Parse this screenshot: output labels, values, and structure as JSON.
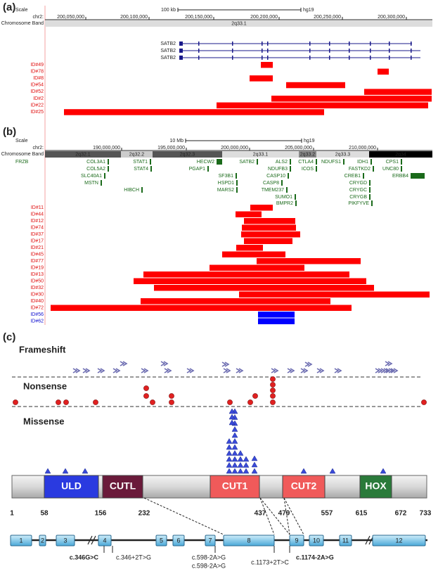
{
  "panel_a": {
    "label": "(a)",
    "scale_label": "Scale",
    "scale_value": "100 kb",
    "assembly": "hg19",
    "chr_label": "chr2:",
    "chr_ticks": [
      "200,050,000",
      "200,100,000",
      "200,150,000",
      "200,200,000",
      "200,250,000",
      "200,300,000"
    ],
    "band_label": "Chromosome Band",
    "band": "2q33.1",
    "genes": [
      "SATB2",
      "SATB2",
      "SATB2"
    ],
    "ids": [
      "ID#49",
      "ID#78",
      "ID#8",
      "ID#54",
      "ID#52",
      "ID#2",
      "ID#22",
      "ID#25"
    ]
  },
  "panel_b": {
    "label": "(b)",
    "scale_label": "Scale",
    "scale_value": "10 Mb",
    "assembly": "hg19",
    "chr_label": "chr2:",
    "chr_ticks": [
      "190,000,000",
      "195,000,000",
      "200,000,000",
      "205,000,000",
      "210,000,000"
    ],
    "band_label": "Chromosome Band",
    "bands": [
      "2q32.1",
      "2q32.2",
      "2q32.3",
      "2q33.1",
      "2q33.2",
      "2q33.3",
      "2q34"
    ],
    "genes": [
      "FRZB",
      "COL3A1",
      "STAT1",
      "HECW2",
      "SATB2",
      "ALS2",
      "CTLA4",
      "NDUFS1",
      "IDH1",
      "CPS1",
      "COL5A2",
      "STAT4",
      "PGAP1",
      "NDUFB3",
      "ICOS",
      "FASTKD2",
      "UNC80",
      "SLC40A1",
      "SF3B1",
      "CASP10",
      "CREB1",
      "ERBB4",
      "MSTN",
      "HSPD1",
      "CASP8",
      "CRYGD",
      "HIBCH",
      "MARS2",
      "TMEM237",
      "CRYGC",
      "SUMO1",
      "CRYGB",
      "BMPR2",
      "PIKFYVE"
    ],
    "ids": [
      "ID#11",
      "ID#44",
      "ID#12",
      "ID#74",
      "ID#37",
      "ID#17",
      "ID#21",
      "ID#45",
      "ID#77",
      "ID#19",
      "ID#13",
      "ID#50",
      "ID#32",
      "ID#30",
      "ID#40",
      "ID#72",
      "ID#56",
      "ID#62"
    ]
  },
  "panel_c": {
    "label": "(c)",
    "sections": [
      "Frameshift",
      "Nonsense",
      "Missense"
    ],
    "domains": [
      "ULD",
      "CUTL",
      "CUT1",
      "CUT2",
      "HOX"
    ],
    "positions": [
      "1",
      "58",
      "156",
      "232",
      "437",
      "479",
      "557",
      "615",
      "672",
      "733"
    ],
    "exons": [
      "1",
      "2",
      "3",
      "4",
      "5",
      "6",
      "7",
      "8",
      "9",
      "10",
      "11",
      "12"
    ],
    "splice_variants": [
      "c.346G>C",
      "c.346+2T>G",
      "c.598-2A>G",
      "c.598-2A>G",
      "c.1173+2T>C",
      "c.1174-2A>G"
    ]
  }
}
